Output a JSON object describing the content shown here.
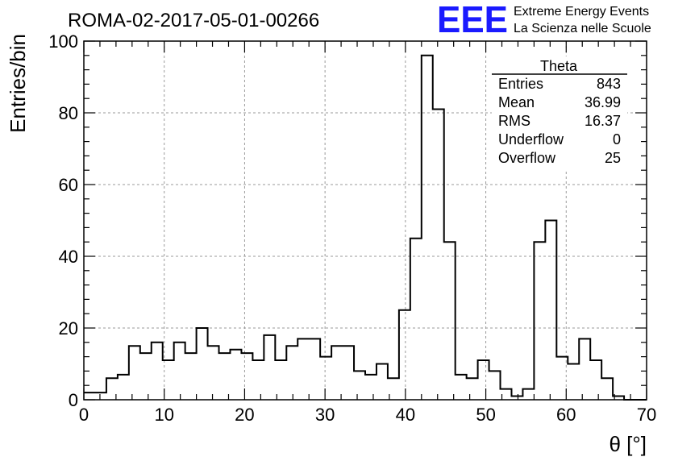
{
  "title": "ROMA-02-2017-05-01-00266",
  "logo": {
    "mark": "EEE",
    "line1": "Extreme Energy Events",
    "line2": "La Scienza nelle Scuole",
    "color": "#1a1aff"
  },
  "chart_data": {
    "type": "histogram",
    "xlabel": "θ [°]",
    "ylabel": "Entries/bin",
    "xlim": [
      0,
      70
    ],
    "ylim": [
      0,
      100
    ],
    "xticks": [
      0,
      10,
      20,
      30,
      40,
      50,
      60,
      70
    ],
    "yticks": [
      0,
      20,
      40,
      60,
      80,
      100
    ],
    "grid": true,
    "bin_width": 1.4,
    "values": [
      2,
      2,
      6,
      7,
      15,
      13,
      16,
      11,
      16,
      13,
      20,
      15,
      13,
      14,
      13,
      11,
      18,
      11,
      15,
      17,
      17,
      12,
      15,
      15,
      8,
      7,
      10,
      6,
      25,
      45,
      96,
      81,
      44,
      7,
      6,
      11,
      8,
      3,
      1,
      3,
      44,
      50,
      12,
      10,
      17,
      11,
      6,
      1,
      0,
      0
    ],
    "line_color": "#000000",
    "stats_box": {
      "title": "Theta",
      "rows": [
        {
          "label": "Entries",
          "value": "843"
        },
        {
          "label": "Mean",
          "value": "36.99"
        },
        {
          "label": "RMS",
          "value": "16.37"
        },
        {
          "label": "Underflow",
          "value": "0"
        },
        {
          "label": "Overflow",
          "value": "25"
        }
      ]
    }
  }
}
